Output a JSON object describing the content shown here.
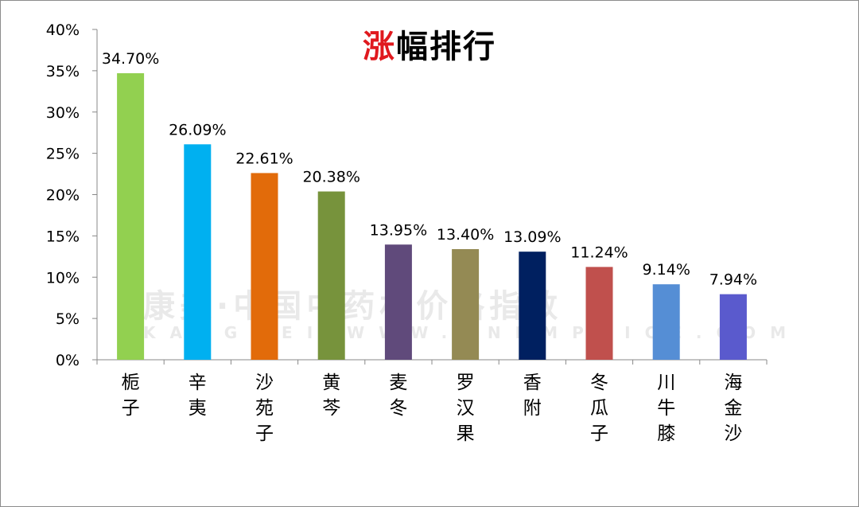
{
  "chart_data": {
    "type": "bar",
    "title_accent": "涨",
    "title_rest": "幅排行",
    "categories": [
      "栀子",
      "辛夷",
      "沙苑子",
      "黄芩",
      "麦冬",
      "罗汉果",
      "香附",
      "冬瓜子",
      "川牛膝",
      "海金沙"
    ],
    "values": [
      34.7,
      26.09,
      22.61,
      20.38,
      13.95,
      13.4,
      13.09,
      11.24,
      9.14,
      7.94
    ],
    "data_labels": [
      "34.70%",
      "26.09%",
      "22.61%",
      "20.38%",
      "13.95%",
      "13.40%",
      "13.09%",
      "11.24%",
      "9.14%",
      "7.94%"
    ],
    "colors": [
      "#92d050",
      "#00b0f0",
      "#e26b0a",
      "#77933c",
      "#604a7b",
      "#948a54",
      "#002060",
      "#c0504d",
      "#558ed5",
      "#5a5acd"
    ],
    "ylim": [
      0,
      40
    ],
    "yticks": [
      0,
      5,
      10,
      15,
      20,
      25,
      30,
      35,
      40
    ],
    "ytick_labels": [
      "0%",
      "5%",
      "10%",
      "15%",
      "20%",
      "25%",
      "30%",
      "35%",
      "40%"
    ],
    "grid": false,
    "legend": "none"
  },
  "watermark": {
    "text_cn": "康美·中国中药材价格指数",
    "text_en": "KANGMEI WWW.CNKMPRICE.COM"
  }
}
